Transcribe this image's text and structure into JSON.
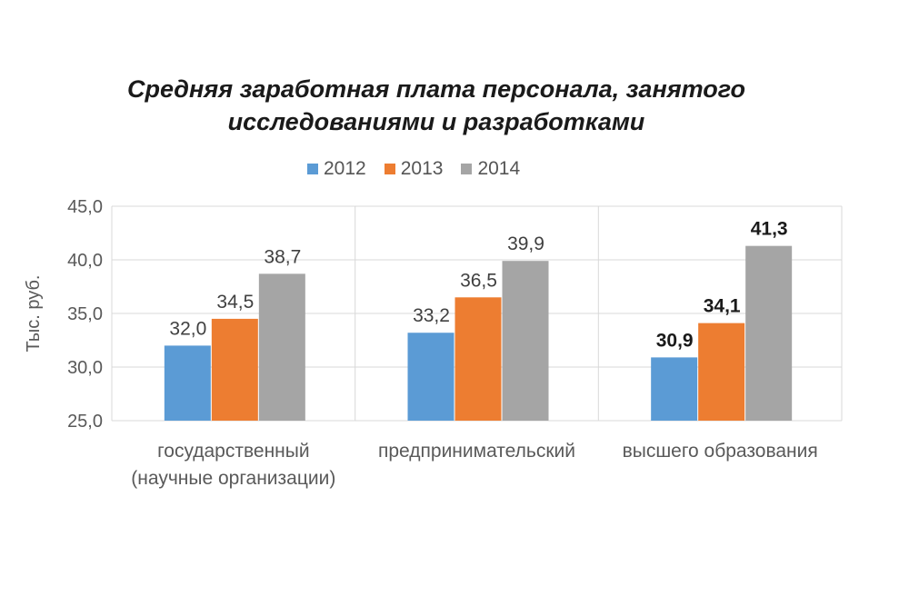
{
  "chart_data": {
    "type": "bar",
    "title_line1": "Средняя заработная плата персонала, занятого",
    "title_line2": "исследованиями и разработками",
    "ylabel": "Тыс. руб.",
    "xlabel": "",
    "ylim": [
      25.0,
      45.0
    ],
    "yticks": [
      "25,0",
      "30,0",
      "35,0",
      "40,0",
      "45,0"
    ],
    "grid": true,
    "legend_position": "top",
    "categories": [
      [
        "государственный",
        "(научные организации)"
      ],
      [
        "предпринимательский"
      ],
      [
        "высшего образования"
      ]
    ],
    "series": [
      {
        "name": "2012",
        "color": "#5b9bd5",
        "values": [
          32.0,
          33.2,
          30.9
        ],
        "labels": [
          "32,0",
          "33,2",
          "30,9"
        ]
      },
      {
        "name": "2013",
        "color": "#ed7d31",
        "values": [
          34.5,
          36.5,
          34.1
        ],
        "labels": [
          "34,5",
          "36,5",
          "34,1"
        ]
      },
      {
        "name": "2014",
        "color": "#a5a5a5",
        "values": [
          38.7,
          39.9,
          41.3
        ],
        "labels": [
          "38,7",
          "39,9",
          "41,3"
        ]
      }
    ],
    "bold_labels_category": 2
  }
}
